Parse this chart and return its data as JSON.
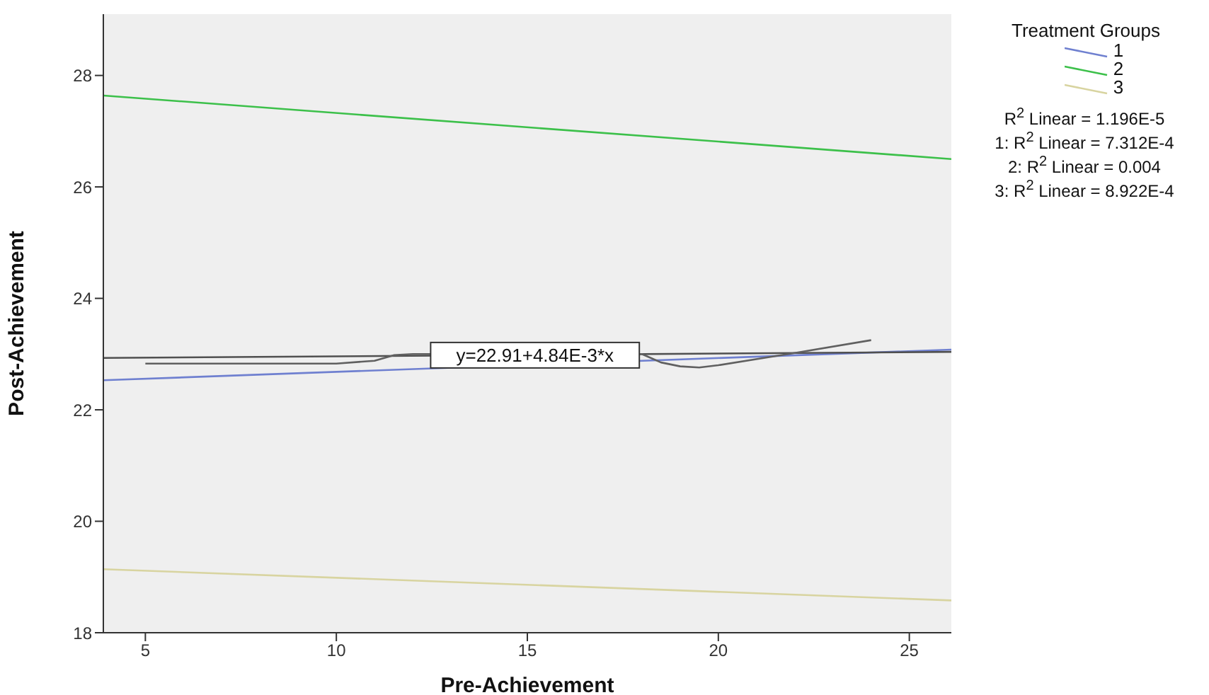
{
  "chart_data": {
    "type": "line",
    "xlabel": "Pre-Achievement",
    "ylabel": "Post-Achievement",
    "legend_title": "Treatment Groups",
    "xlim": [
      3.9,
      26.1
    ],
    "xticks": [
      5,
      10,
      15,
      20,
      25
    ],
    "ylim": [
      18,
      29.1
    ],
    "yticks": [
      18,
      20,
      22,
      24,
      26,
      28
    ],
    "x": [
      3.9,
      26.1
    ],
    "series": [
      {
        "name": "1",
        "color": "#6f80d0",
        "values": [
          22.53,
          23.08
        ]
      },
      {
        "name": "2",
        "color": "#3cc04a",
        "values": [
          27.64,
          26.5
        ]
      },
      {
        "name": "3",
        "color": "#d8d4a0",
        "values": [
          19.14,
          18.58
        ]
      },
      {
        "type": "line",
        "color": "#505050",
        "x": [
          3.9,
          26.1
        ],
        "values": [
          22.93,
          23.04
        ]
      },
      {
        "type": "line",
        "color": "#606060",
        "x": [
          5,
          10,
          11,
          11.5,
          12,
          18,
          18.5,
          19,
          19.5,
          20,
          22,
          24
        ],
        "values": [
          22.83,
          22.83,
          22.88,
          22.98,
          23.0,
          23.0,
          22.85,
          22.78,
          22.76,
          22.8,
          23.02,
          23.25
        ]
      }
    ],
    "annotations": [
      {
        "text": "y=22.91+4.84E-3*x",
        "x": 15.2,
        "y": 22.98
      },
      "R$^{2}$ Linear = 1.196E-5",
      "1: R$^{2}$ Linear = 7.312E-4",
      "2: R$^{2}$ Linear = 0.004",
      "3: R$^{2}$ Linear = 8.922E-4"
    ],
    "legend": "top right",
    "grid": false,
    "marker": "none",
    "line_style": "solid"
  }
}
